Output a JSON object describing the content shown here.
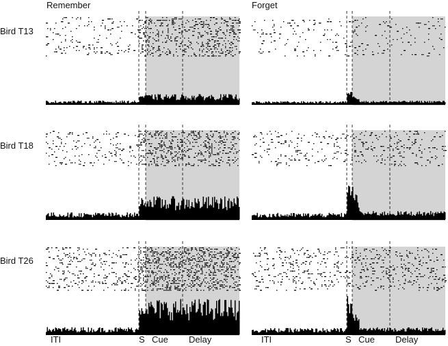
{
  "columns": [
    "Remember",
    "Forget"
  ],
  "rows": [
    "Bird T13",
    "Bird T18",
    "Bird T26"
  ],
  "phase_labels": {
    "iti": "ITI",
    "s": "S",
    "cue": "Cue",
    "delay": "Delay"
  },
  "colors": {
    "shade": "#d4d4d4",
    "ink": "#000000",
    "dash": "#000000"
  },
  "chart_data": {
    "type": "raster_psth",
    "layout": "3 rows x 2 columns",
    "shading": "cue and delay periods shaded grey",
    "panels": [
      {
        "bird": "Bird T13",
        "condition": "Remember",
        "baseline_rate": 0.12,
        "response_rate": 0.32,
        "peak": 0.25,
        "raster_density": 0.07,
        "raster_density_after": 0.2
      },
      {
        "bird": "Bird T13",
        "condition": "Forget",
        "baseline_rate": 0.1,
        "response_rate": 0.11,
        "peak": 0.55,
        "raster_density": 0.045,
        "raster_density_after": 0.05
      },
      {
        "bird": "Bird T18",
        "condition": "Remember",
        "baseline_rate": 0.14,
        "response_rate": 0.45,
        "peak": 0.3,
        "raster_density": 0.08,
        "raster_density_after": 0.22
      },
      {
        "bird": "Bird T18",
        "condition": "Forget",
        "baseline_rate": 0.13,
        "response_rate": 0.16,
        "peak": 0.95,
        "raster_density": 0.07,
        "raster_density_after": 0.09
      },
      {
        "bird": "Bird T26",
        "condition": "Remember",
        "baseline_rate": 0.15,
        "response_rate": 0.7,
        "peak": 0.2,
        "raster_density": 0.12,
        "raster_density_after": 0.3
      },
      {
        "bird": "Bird T26",
        "condition": "Forget",
        "baseline_rate": 0.13,
        "response_rate": 0.14,
        "peak": 0.8,
        "raster_density": 0.1,
        "raster_density_after": 0.12
      }
    ]
  }
}
